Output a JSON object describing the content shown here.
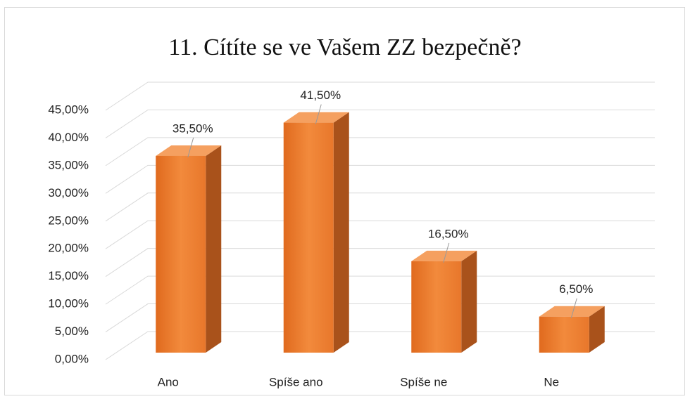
{
  "chart_data": {
    "type": "bar3d",
    "title": "11. Cítíte se ve Vašem ZZ bezpečně?",
    "categories": [
      "Ano",
      "Spíše ano",
      "Spíše ne",
      "Ne"
    ],
    "values": [
      35.5,
      41.5,
      16.5,
      6.5
    ],
    "value_labels": [
      "35,50%",
      "41,50%",
      "16,50%",
      "6,50%"
    ],
    "color": "#ed7d31",
    "ylim": [
      0,
      45
    ],
    "yticks": [
      {
        "value": 0,
        "label": "0,00%"
      },
      {
        "value": 5,
        "label": "5,00%"
      },
      {
        "value": 10,
        "label": "10,00%"
      },
      {
        "value": 15,
        "label": "15,00%"
      },
      {
        "value": 20,
        "label": "20,00%"
      },
      {
        "value": 25,
        "label": "25,00%"
      },
      {
        "value": 30,
        "label": "30,00%"
      },
      {
        "value": 35,
        "label": "35,00%"
      },
      {
        "value": 40,
        "label": "40,00%"
      },
      {
        "value": 45,
        "label": "45,00%"
      }
    ],
    "grid": true
  }
}
